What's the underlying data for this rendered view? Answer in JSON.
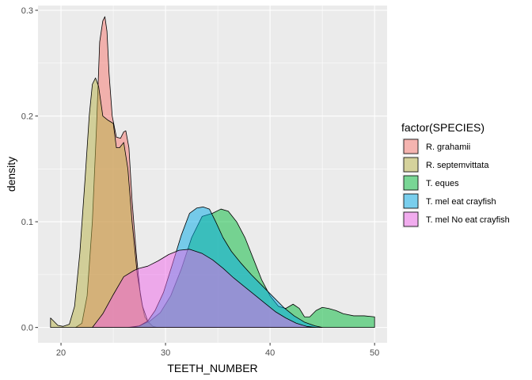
{
  "chart_data": {
    "type": "area",
    "title": "",
    "xlabel": "TEETH_NUMBER",
    "ylabel": "density",
    "xlim": [
      17.8,
      51.2
    ],
    "ylim": [
      -0.0145,
      0.3045
    ],
    "x_ticks": [
      20,
      30,
      40,
      50
    ],
    "y_ticks": [
      0.0,
      0.1,
      0.2,
      0.3
    ],
    "x_tick_labels": [
      "20",
      "30",
      "40",
      "50"
    ],
    "y_tick_labels": [
      "0.0",
      "0.1",
      "0.2",
      "0.3"
    ],
    "grid": true,
    "legend_position": "right",
    "legend_title": "factor(SPECIES)",
    "series": [
      {
        "name": "R. grahamii",
        "color": "#F8766D",
        "x": [
          21.4,
          22.0,
          22.5,
          23.0,
          23.4,
          23.7,
          24.0,
          24.2,
          24.4,
          24.6,
          24.9,
          25.3,
          25.7,
          26.0,
          26.2,
          26.5,
          26.8,
          27.2,
          27.6,
          28.0,
          28.4,
          28.8,
          29.2
        ],
        "y": [
          0.0,
          0.004,
          0.03,
          0.1,
          0.19,
          0.27,
          0.29,
          0.294,
          0.28,
          0.24,
          0.2,
          0.18,
          0.179,
          0.185,
          0.186,
          0.17,
          0.12,
          0.07,
          0.03,
          0.01,
          0.004,
          0.001,
          0.0
        ]
      },
      {
        "name": "R. septemvittata",
        "color": "#B8B145",
        "x": [
          19.0,
          19.3,
          19.7,
          20.2,
          20.8,
          21.3,
          21.8,
          22.3,
          22.7,
          23.0,
          23.3,
          23.6,
          24.0,
          24.5,
          25.0,
          25.3,
          25.6,
          26.0,
          26.4,
          26.8,
          27.3,
          27.8,
          28.3,
          28.8,
          29.2
        ],
        "y": [
          0.009,
          0.006,
          0.002,
          0.001,
          0.003,
          0.02,
          0.07,
          0.14,
          0.2,
          0.23,
          0.236,
          0.228,
          0.2,
          0.196,
          0.193,
          0.17,
          0.17,
          0.175,
          0.15,
          0.1,
          0.05,
          0.02,
          0.006,
          0.001,
          0.0
        ]
      },
      {
        "name": "T. eques",
        "color": "#00BA38",
        "x": [
          26.4,
          27.5,
          28.5,
          29.5,
          30.5,
          31.5,
          32.5,
          33.5,
          34.5,
          35.3,
          36.0,
          36.8,
          37.6,
          38.4,
          39.2,
          40.0,
          40.8,
          41.5,
          42.2,
          42.8,
          43.3,
          43.8,
          44.4,
          45.0,
          45.6,
          46.3,
          47.0,
          48.0,
          49.0,
          50.0
        ],
        "y": [
          0.0,
          0.0015,
          0.006,
          0.014,
          0.03,
          0.055,
          0.085,
          0.105,
          0.108,
          0.112,
          0.11,
          0.1,
          0.085,
          0.065,
          0.045,
          0.03,
          0.02,
          0.018,
          0.022,
          0.018,
          0.01,
          0.01,
          0.016,
          0.019,
          0.018,
          0.016,
          0.013,
          0.011,
          0.011,
          0.01
        ]
      },
      {
        "name": "T. mel eat crayfish",
        "color": "#00A9E8",
        "x": [
          26.8,
          27.5,
          28.3,
          29.0,
          29.8,
          30.6,
          31.5,
          32.3,
          33.0,
          33.6,
          34.2,
          34.8,
          35.5,
          36.3,
          37.2,
          38.2,
          39.3,
          40.3,
          41.3,
          42.3,
          43.3,
          44.3,
          45.0
        ],
        "y": [
          0.0,
          0.0015,
          0.006,
          0.016,
          0.033,
          0.058,
          0.087,
          0.108,
          0.113,
          0.114,
          0.112,
          0.1,
          0.085,
          0.072,
          0.061,
          0.05,
          0.039,
          0.029,
          0.019,
          0.011,
          0.005,
          0.0015,
          0.0
        ]
      },
      {
        "name": "T. mel No eat crayfish",
        "color": "#F066EA",
        "x": [
          23.0,
          24.0,
          25.0,
          26.0,
          27.0,
          27.5,
          28.3,
          29.3,
          30.3,
          31.3,
          32.3,
          33.5,
          34.5,
          35.5,
          36.5,
          37.5,
          38.5,
          39.5,
          40.5,
          41.5,
          42.5,
          43.5,
          44.4
        ],
        "y": [
          0.0,
          0.013,
          0.031,
          0.048,
          0.054,
          0.056,
          0.058,
          0.063,
          0.069,
          0.073,
          0.074,
          0.07,
          0.064,
          0.056,
          0.047,
          0.039,
          0.031,
          0.023,
          0.015,
          0.009,
          0.004,
          0.001,
          0.0
        ]
      }
    ]
  }
}
